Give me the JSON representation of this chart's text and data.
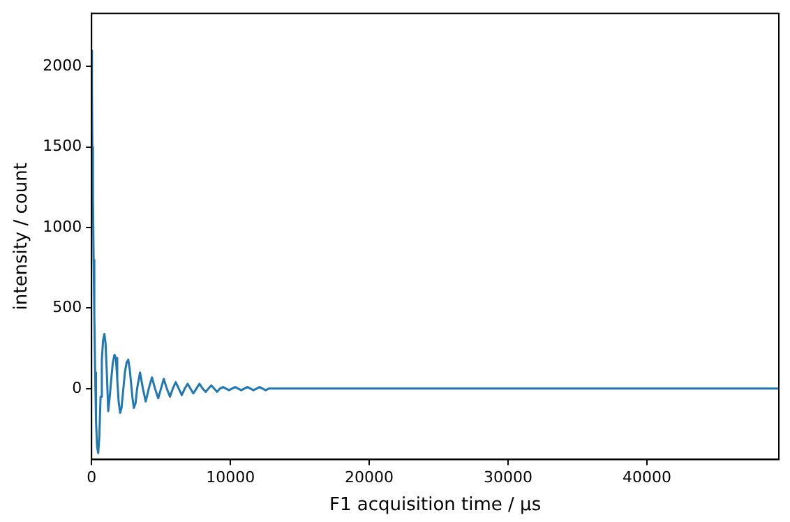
{
  "chart_data": {
    "type": "line",
    "xlabel": "F1 acquisition time / µs",
    "ylabel": "intensity / count",
    "xlim": [
      0,
      49500
    ],
    "ylim": [
      -440,
      2330
    ],
    "xticks": [
      0,
      10000,
      20000,
      30000,
      40000
    ],
    "yticks": [
      0,
      500,
      1000,
      1500,
      2000
    ],
    "grid": false,
    "legend": false,
    "marker": "none",
    "line_style": "solid",
    "series": [
      {
        "color": "#1f77b4",
        "x": [
          0,
          30,
          60,
          100,
          150,
          200,
          260,
          320,
          400,
          480,
          560,
          650,
          740,
          830,
          925,
          1010,
          1100,
          1200,
          1300,
          1420,
          1530,
          1650,
          1750,
          1850,
          1950,
          2060,
          2160,
          2270,
          2400,
          2520,
          2640,
          2750,
          2850,
          2950,
          3050,
          3170,
          3280,
          3490,
          3700,
          3900,
          4120,
          4350,
          4570,
          4800,
          5000,
          5200,
          5420,
          5650,
          5850,
          6060,
          6280,
          6500,
          6710,
          6920,
          7120,
          7330,
          7550,
          7770,
          8000,
          8220,
          8420,
          8630,
          8830,
          9040,
          9250,
          9470,
          9680,
          9900,
          10120,
          10340,
          10560,
          10780,
          11000,
          11220,
          11440,
          11660,
          11880,
          12100,
          12320,
          12540,
          12760,
          12980,
          13500,
          14500,
          16000,
          20000,
          30000,
          40000,
          49500
        ],
        "values": [
          2100,
          1850,
          1500,
          1200,
          800,
          450,
          100,
          -200,
          -360,
          -400,
          -300,
          -50,
          180,
          300,
          340,
          280,
          100,
          -140,
          -60,
          60,
          160,
          210,
          190,
          60,
          -80,
          -150,
          -120,
          -20,
          100,
          160,
          180,
          120,
          30,
          -60,
          -120,
          -90,
          0,
          100,
          0,
          -80,
          0,
          70,
          0,
          -60,
          0,
          60,
          0,
          -50,
          0,
          40,
          0,
          -40,
          0,
          30,
          0,
          -30,
          0,
          30,
          0,
          -20,
          0,
          20,
          0,
          -20,
          0,
          10,
          0,
          -10,
          0,
          10,
          0,
          -10,
          0,
          10,
          0,
          -10,
          0,
          10,
          0,
          -10,
          0,
          0,
          0,
          0,
          0,
          0,
          0,
          0,
          0
        ]
      }
    ]
  }
}
